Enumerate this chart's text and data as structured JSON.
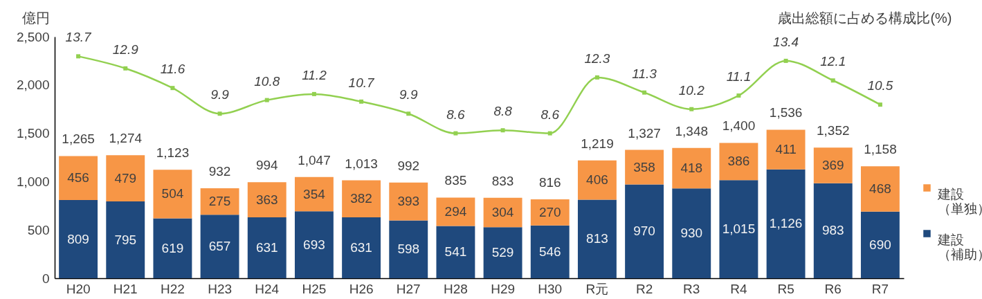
{
  "chart_data": {
    "type": "bar",
    "stacked": true,
    "ylabel": "億円",
    "y2label": "歳出総額に占める構成比(%)",
    "categories": [
      "H20",
      "H21",
      "H22",
      "H23",
      "H24",
      "H25",
      "H26",
      "H27",
      "H28",
      "H29",
      "H30",
      "R元",
      "R2",
      "R3",
      "R4",
      "R5",
      "R6",
      "R7"
    ],
    "series": [
      {
        "name": "建設（補助）",
        "color": "#1f497d",
        "values": [
          809,
          795,
          619,
          657,
          631,
          693,
          631,
          598,
          541,
          529,
          546,
          813,
          970,
          930,
          1015,
          1126,
          983,
          690
        ],
        "value_labels": [
          "809",
          "795",
          "619",
          "657",
          "631",
          "693",
          "631",
          "598",
          "541",
          "529",
          "546",
          "813",
          "970",
          "930",
          "1,015",
          "1,126",
          "983",
          "690"
        ]
      },
      {
        "name": "建設（単独）",
        "color": "#f79646",
        "values": [
          456,
          479,
          504,
          275,
          363,
          354,
          382,
          393,
          294,
          304,
          270,
          406,
          358,
          418,
          386,
          411,
          369,
          468
        ]
      },
      {
        "type": "line",
        "axis": "y2",
        "color": "#92d050",
        "values": [
          13.7,
          12.9,
          11.6,
          9.9,
          10.8,
          11.2,
          10.7,
          9.9,
          8.6,
          8.8,
          8.6,
          12.3,
          11.3,
          10.2,
          11.1,
          13.4,
          12.1,
          10.5
        ]
      }
    ],
    "totals": [
      "1,265",
      "1,274",
      "1,123",
      "932",
      "994",
      "1,047",
      "1,013",
      "992",
      "835",
      "833",
      "816",
      "1,219",
      "1,327",
      "1,348",
      "1,400",
      "1,536",
      "1,352",
      "1,158"
    ],
    "ylim": [
      0,
      2500
    ],
    "yticks": [
      0,
      500,
      {
        "value": 1000,
        "label": "1,000"
      },
      {
        "value": 1500,
        "label": "1,500"
      },
      {
        "value": 2000,
        "label": "2,000"
      },
      {
        "value": 2500,
        "label": "2,500"
      }
    ],
    "y2lim": [
      -1,
      15
    ],
    "data_labels": true,
    "legend": "right",
    "grid": false,
    "marker": "square"
  }
}
